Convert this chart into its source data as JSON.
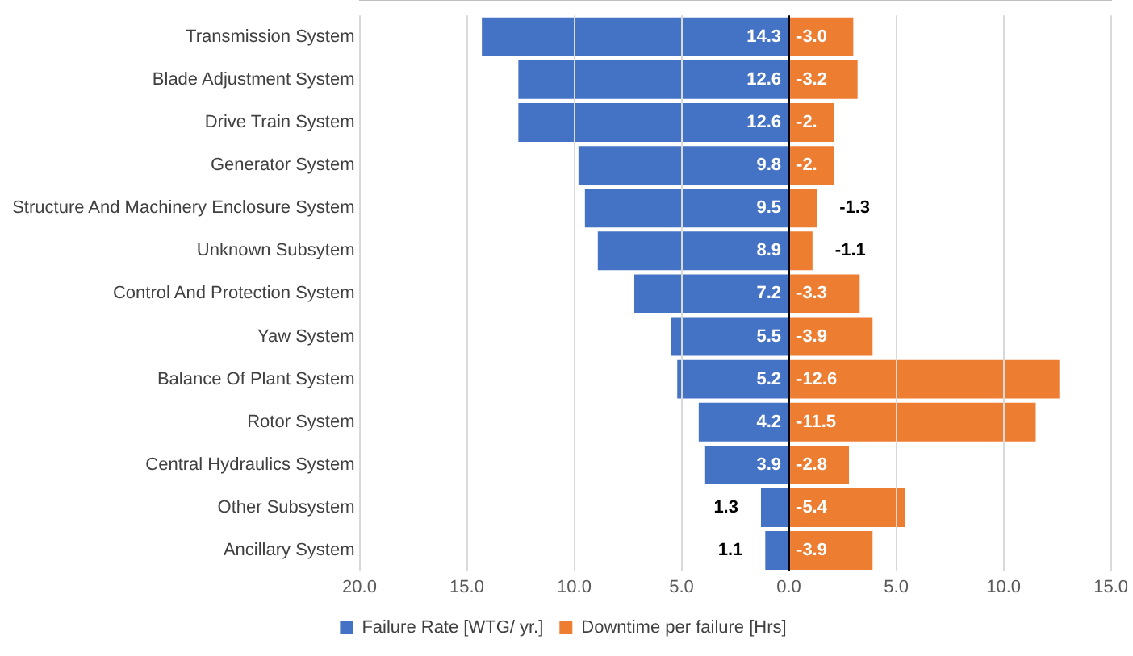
{
  "chart_data": {
    "type": "bar",
    "orientation": "horizontal",
    "stacked": true,
    "categories": [
      "Transmission System",
      "Blade Adjustment System",
      "Drive Train System",
      "Generator System",
      "Structure And Machinery Enclosure System",
      "Unknown Subsytem",
      "Control And Protection System",
      "Yaw System",
      "Balance Of Plant System",
      "Rotor System",
      "Central Hydraulics System",
      "Other Subsystem",
      "Ancillary System"
    ],
    "series": [
      {
        "name": "Failure Rate [WTG/ yr.]",
        "color": "#4472c4",
        "values": [
          14.3,
          12.6,
          12.6,
          9.8,
          9.5,
          8.9,
          7.2,
          5.5,
          5.2,
          4.2,
          3.9,
          1.3,
          1.1
        ],
        "value_labels": [
          "14.3",
          "12.6",
          "12.6",
          "9.8",
          "9.5",
          "8.9",
          "7.2",
          "5.5",
          "5.2",
          "4.2",
          "3.9",
          "1.3",
          "1.1"
        ]
      },
      {
        "name": "Downtime per failure [Hrs]",
        "color": "#ed7d31",
        "values": [
          -3.0,
          -3.2,
          -2.1,
          -2.1,
          -1.3,
          -1.1,
          -3.3,
          -3.9,
          -12.6,
          -11.5,
          -2.8,
          -5.4,
          -3.9
        ],
        "value_labels": [
          "-3.0",
          "-3.2",
          "-2.",
          "-2.",
          "-1.3",
          "-1.1",
          "-3.3",
          "-3.9",
          "-12.6",
          "-11.5",
          "-2.8",
          "-5.4",
          "-3.9"
        ]
      }
    ],
    "xlim": [
      20,
      -15
    ],
    "xticks": [
      {
        "value": 20,
        "label": "20.0"
      },
      {
        "value": 15,
        "label": "15.0"
      },
      {
        "value": 10,
        "label": "10.0"
      },
      {
        "value": 5,
        "label": "5.0"
      },
      {
        "value": 0,
        "label": "0.0"
      },
      {
        "value": -5,
        "label": "5.0"
      },
      {
        "value": -10,
        "label": "10.0"
      },
      {
        "value": -15,
        "label": "15.0"
      }
    ],
    "grid": "x",
    "legend": "bottom"
  }
}
